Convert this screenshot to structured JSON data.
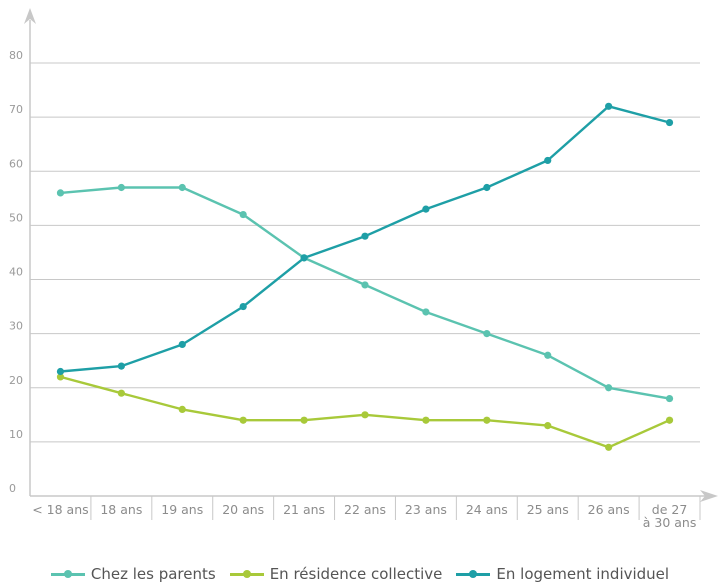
{
  "chart_data": {
    "type": "line",
    "categories": [
      "< 18 ans",
      "18 ans",
      "19 ans",
      "20 ans",
      "21 ans",
      "22 ans",
      "23 ans",
      "24 ans",
      "25 ans",
      "26 ans",
      "de 27 à 30 ans"
    ],
    "category_lines": [
      [
        "< 18 ans"
      ],
      [
        "18 ans"
      ],
      [
        "19 ans"
      ],
      [
        "20 ans"
      ],
      [
        "21 ans"
      ],
      [
        "22 ans"
      ],
      [
        "23 ans"
      ],
      [
        "24 ans"
      ],
      [
        "25 ans"
      ],
      [
        "26 ans"
      ],
      [
        "de 27",
        "à 30 ans"
      ]
    ],
    "yticks": [
      0,
      10,
      20,
      30,
      40,
      50,
      60,
      70,
      80
    ],
    "ylim": [
      0,
      80
    ],
    "grid": true,
    "legend_position": "bottom",
    "series": [
      {
        "name": "Chez les parents",
        "color": "#5bc3b0",
        "values": [
          56,
          57,
          57,
          52,
          44,
          39,
          34,
          30,
          26,
          20,
          18
        ]
      },
      {
        "name": "En résidence collective",
        "color": "#a8c93a",
        "values": [
          22,
          19,
          16,
          14,
          14,
          15,
          14,
          14,
          13,
          9,
          14
        ]
      },
      {
        "name": "En logement individuel",
        "color": "#1e9fa6",
        "values": [
          23,
          24,
          28,
          35,
          44,
          48,
          53,
          57,
          62,
          72,
          69
        ]
      }
    ]
  }
}
